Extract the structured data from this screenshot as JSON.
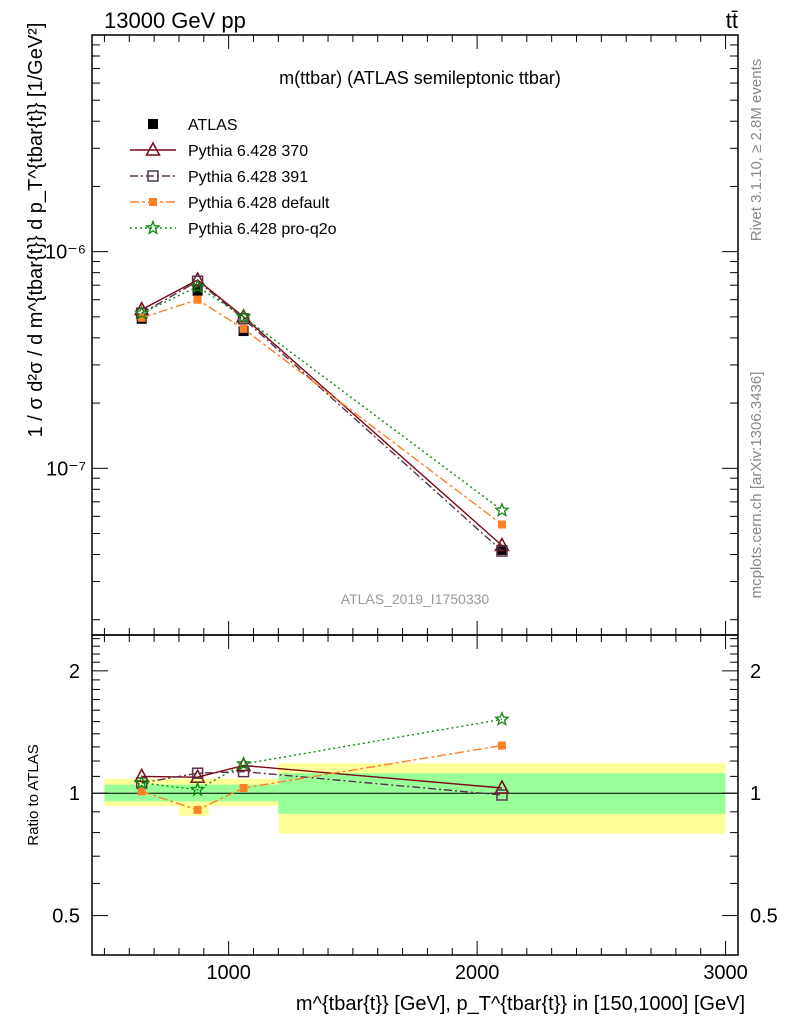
{
  "header": {
    "left": "13000 GeV pp",
    "right": "tt̄"
  },
  "side_labels": {
    "rivet": "Rivet 3.1.10, ≥ 2.8M events",
    "mcplots": "mcplots.cern.ch [arXiv:1306.3436]"
  },
  "colors": {
    "atlas": "#000000",
    "p370": "#7a0a14",
    "p391": "#5a3050",
    "pdefault": "#ff7f27",
    "pq2o": "#118811",
    "band_inner": "#99ff99",
    "band_outer": "#ffff99"
  },
  "chart_data": [
    {
      "type": "line",
      "title": "m(ttbar) (ATLAS semileptonic ttbar)",
      "watermark": "ATLAS_2019_I1750330",
      "ylabel": "1 / σ d²σ / d m^{tbar{t}} d p_T^{tbar{t}} [1/GeV²]",
      "yscale": "log",
      "ylim": [
        1.7e-08,
        1e-05
      ],
      "xlim": [
        450,
        3050
      ],
      "yticks": [
        {
          "v": 1e-07,
          "label": "10⁻⁷"
        },
        {
          "v": 1e-06,
          "label": "10⁻⁶"
        }
      ],
      "legend_position": "top-left",
      "x": [
        650,
        875,
        1060,
        2100
      ],
      "series": [
        {
          "name": "ATLAS",
          "key": "atlas",
          "marker": "square",
          "values": [
            4.9e-07,
            6.6e-07,
            4.3e-07,
            4.2e-08
          ]
        },
        {
          "name": "Pythia 6.428 370",
          "key": "p370",
          "marker": "triangle",
          "values": [
            5.4e-07,
            7.4e-07,
            5e-07,
            4.4e-08
          ]
        },
        {
          "name": "Pythia 6.428 391",
          "key": "p391",
          "marker": "open-square",
          "values": [
            5.2e-07,
            7.3e-07,
            4.9e-07,
            4.15e-08
          ]
        },
        {
          "name": "Pythia 6.428 default",
          "key": "pdefault",
          "marker": "filled-square",
          "values": [
            4.95e-07,
            6e-07,
            4.4e-07,
            5.5e-08
          ]
        },
        {
          "name": "Pythia 6.428 pro-q2o",
          "key": "pq2o",
          "marker": "star",
          "values": [
            5.2e-07,
            6.9e-07,
            5e-07,
            6.4e-08
          ]
        }
      ]
    },
    {
      "type": "line",
      "ylabel": "Ratio to ATLAS",
      "xlabel": "m^{tbar{t}} [GeV], p_T^{tbar{t}} in [150,1000] [GeV]",
      "yscale": "log",
      "ylim": [
        0.4,
        2.45
      ],
      "xlim": [
        450,
        3050
      ],
      "yticks": [
        {
          "v": 0.5,
          "label": "0.5"
        },
        {
          "v": 1,
          "label": "1"
        },
        {
          "v": 2,
          "label": "2"
        }
      ],
      "xticks": [
        {
          "v": 1000,
          "label": "1000"
        },
        {
          "v": 2000,
          "label": "2000"
        },
        {
          "v": 3000,
          "label": "3000"
        }
      ],
      "bins": [
        {
          "lo": 500,
          "hi": 800,
          "inner": [
            0.955,
            1.05
          ],
          "outer": [
            0.93,
            1.085
          ]
        },
        {
          "lo": 800,
          "hi": 920,
          "inner": [
            0.955,
            1.05
          ],
          "outer": [
            0.88,
            1.085
          ]
        },
        {
          "lo": 920,
          "hi": 1200,
          "inner": [
            0.955,
            1.05
          ],
          "outer": [
            0.93,
            1.085
          ]
        },
        {
          "lo": 1200,
          "hi": 3000,
          "inner": [
            0.89,
            1.12
          ],
          "outer": [
            0.795,
            1.185
          ]
        }
      ],
      "x": [
        650,
        875,
        1060,
        2100
      ],
      "series": [
        {
          "name": "Pythia 6.428 370",
          "key": "p370",
          "marker": "triangle",
          "values": [
            1.1,
            1.095,
            1.17,
            1.03
          ]
        },
        {
          "name": "Pythia 6.428 391",
          "key": "p391",
          "marker": "open-square",
          "values": [
            1.06,
            1.12,
            1.13,
            0.99
          ]
        },
        {
          "name": "Pythia 6.428 default",
          "key": "pdefault",
          "marker": "filled-square",
          "values": [
            1.01,
            0.91,
            1.03,
            1.31
          ]
        },
        {
          "name": "Pythia 6.428 pro-q2o",
          "key": "pq2o",
          "marker": "star",
          "values": [
            1.06,
            1.02,
            1.18,
            1.52
          ]
        }
      ]
    }
  ]
}
